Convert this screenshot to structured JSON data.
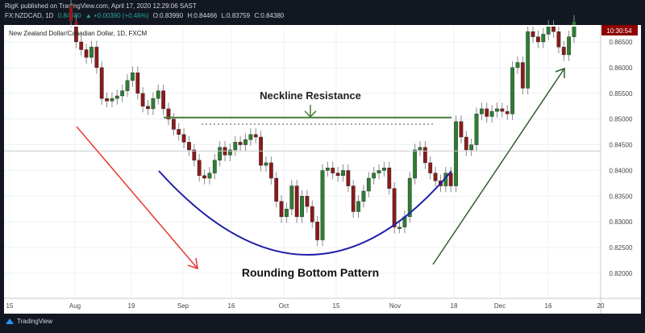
{
  "header": {
    "published": "RigK published on TradingView.com, April 17, 2020 12:29:06 SAST",
    "symbol": "FX:NZDCAD, 1D",
    "last": "0.84380",
    "change": "▲ +0.00390 (+0.46%)",
    "open": "O:0.83990",
    "high": "H:0.84466",
    "low": "L:0.83759",
    "close": "C:0.84380"
  },
  "legend_title": "New Zealand Dollar/Canadian Dollar, 1D, FXCM",
  "clock_label": "10:30:54",
  "footer": {
    "brand": "TradingView"
  },
  "colors": {
    "up": "#2e7d32",
    "down": "#8b1a1a",
    "neckline": "#4a7a3a",
    "curve": "#1f1fa8",
    "down_arrow": "#e53935",
    "up_arrow": "#2e5e2e",
    "clock_bg": "#8b0000"
  },
  "chart_data": {
    "type": "candlestick",
    "symbol": "NZDCAD",
    "interval": "1D",
    "ylim": [
      0.818,
      0.869
    ],
    "y_ticks": [
      "0.86500",
      "0.86000",
      "0.85500",
      "0.85000",
      "0.84500",
      "0.84000",
      "0.83500",
      "0.83000",
      "0.82500",
      "0.82000"
    ],
    "x_ticks": [
      "15",
      "Aug",
      "19",
      "Sep",
      "16",
      "Oct",
      "15",
      "Nov",
      "18",
      "Dec",
      "16",
      "20"
    ],
    "first_open": 0.872,
    "closes": [
      0.869,
      0.865,
      0.8635,
      0.862,
      0.864,
      0.86,
      0.854,
      0.8535,
      0.854,
      0.8545,
      0.8555,
      0.8575,
      0.859,
      0.855,
      0.8525,
      0.852,
      0.854,
      0.8555,
      0.852,
      0.85,
      0.848,
      0.847,
      0.8455,
      0.844,
      0.842,
      0.839,
      0.8385,
      0.8395,
      0.842,
      0.8445,
      0.843,
      0.844,
      0.8455,
      0.845,
      0.846,
      0.847,
      0.8465,
      0.841,
      0.8415,
      0.8385,
      0.834,
      0.831,
      0.8325,
      0.837,
      0.831,
      0.835,
      0.833,
      0.83,
      0.8265,
      0.84,
      0.8405,
      0.8395,
      0.839,
      0.84,
      0.837,
      0.832,
      0.834,
      0.836,
      0.8385,
      0.8395,
      0.84,
      0.8405,
      0.8365,
      0.829,
      0.829,
      0.831,
      0.8385,
      0.844,
      0.8445,
      0.8415,
      0.8395,
      0.838,
      0.837,
      0.8395,
      0.837,
      0.8495,
      0.8465,
      0.844,
      0.845,
      0.851,
      0.852,
      0.8505,
      0.8515,
      0.852,
      0.8515,
      0.851,
      0.86,
      0.861,
      0.856,
      0.867,
      0.866,
      0.865,
      0.8665,
      0.868,
      0.867,
      0.864,
      0.8625,
      0.866,
      0.869
    ],
    "neckline": 0.8503,
    "prior_high_dotted": 0.849,
    "horizontal_line": 0.8438,
    "annotations": [
      "Neckline Resistance",
      "Rounding Bottom Pattern"
    ]
  }
}
